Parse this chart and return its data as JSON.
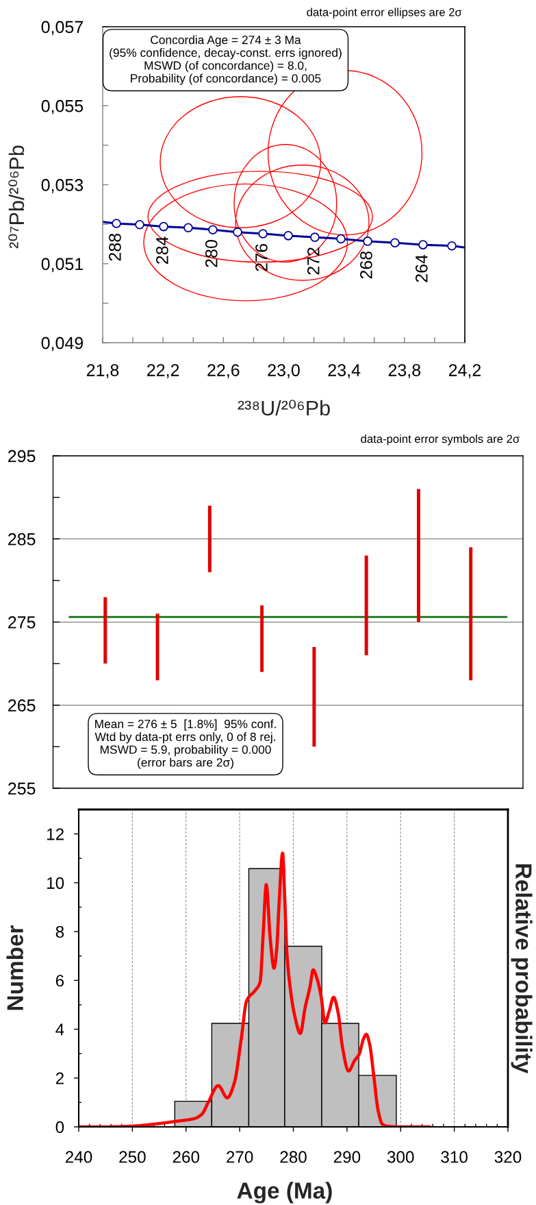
{
  "chart_data": [
    {
      "type": "line",
      "xlabel": "²³⁸U/²⁰⁶Pb",
      "ylabel": "²⁰⁷Pb/²⁰⁶Pb",
      "xlim": [
        21.8,
        24.2
      ],
      "ylim": [
        0.049,
        0.057
      ],
      "xticks": [
        {
          "value": 21.8,
          "label": "21,8"
        },
        {
          "value": 22.0,
          "label": null
        },
        {
          "value": 22.2,
          "label": "22,2"
        },
        {
          "value": 22.4,
          "label": null
        },
        {
          "value": 22.6,
          "label": "22,6"
        },
        {
          "value": 22.8,
          "label": null
        },
        {
          "value": 23.0,
          "label": "23,0"
        },
        {
          "value": 23.2,
          "label": null
        },
        {
          "value": 23.4,
          "label": "23,4"
        },
        {
          "value": 23.6,
          "label": null
        },
        {
          "value": 23.8,
          "label": "23,8"
        },
        {
          "value": 24.0,
          "label": null
        },
        {
          "value": 24.2,
          "label": "24,2"
        }
      ],
      "yticks": [
        {
          "value": 0.049,
          "label": "0,049"
        },
        {
          "value": 0.05,
          "label": null
        },
        {
          "value": 0.051,
          "label": "0,051"
        },
        {
          "value": 0.052,
          "label": null
        },
        {
          "value": 0.053,
          "label": "0,053"
        },
        {
          "value": 0.054,
          "label": null
        },
        {
          "value": 0.055,
          "label": "0,055"
        },
        {
          "value": 0.056,
          "label": null
        },
        {
          "value": 0.057,
          "label": "0,057"
        }
      ],
      "series": [
        {
          "type": "line",
          "marker": "none",
          "color": "#000099",
          "x": [
            21.8,
            21.891,
            22.045,
            22.204,
            22.367,
            22.53,
            22.694,
            22.862,
            23.03,
            23.206,
            23.379,
            23.556,
            23.737,
            23.923,
            24.114,
            24.2
          ],
          "values": [
            0.05206,
            0.05202,
            0.05199,
            0.05194,
            0.05191,
            0.05186,
            0.0518,
            0.05176,
            0.05171,
            0.05167,
            0.05163,
            0.05157,
            0.05153,
            0.05148,
            0.05145,
            0.05141
          ]
        },
        {
          "type": "scatter",
          "marker": "circle",
          "color": "#000099",
          "x": [
            21.891,
            22.045,
            22.204,
            22.367,
            22.53,
            22.694,
            22.862,
            23.03,
            23.206,
            23.379,
            23.556,
            23.737,
            23.923,
            24.114
          ],
          "values": [
            0.05202,
            0.05199,
            0.05194,
            0.05191,
            0.05186,
            0.0518,
            0.05176,
            0.05171,
            0.05167,
            0.05163,
            0.05157,
            0.05153,
            0.05148,
            0.05145
          ]
        }
      ],
      "annotations": [
        "data-point error ellipses are 2σ",
        "Concordia Age = 274 ± 3 Ma\n(95% confidence, decay-const. errs ignored)\nMSWD (of concordance) = 8.0,\nProbability (of concordance) = 0.005",
        {
          "text": "288",
          "x": 21.891,
          "y": 0.05202
        },
        {
          "text": "284",
          "x": 22.204,
          "y": 0.05194
        },
        {
          "text": "280",
          "x": 22.53,
          "y": 0.05186
        },
        {
          "text": "276",
          "x": 22.862,
          "y": 0.05176
        },
        {
          "text": "272",
          "x": 23.206,
          "y": 0.05167
        },
        {
          "text": "268",
          "x": 23.556,
          "y": 0.05157
        },
        {
          "text": "264",
          "x": 23.923,
          "y": 0.05148
        }
      ]
    },
    {
      "type": "bar",
      "categories": [
        null,
        null,
        null,
        null,
        null,
        null,
        null,
        null
      ],
      "base": [
        270,
        268,
        281,
        269,
        260,
        271,
        275,
        268
      ],
      "values": [
        8,
        8,
        8,
        8,
        12,
        12,
        16,
        16
      ],
      "color": "#e00000",
      "ylim": [
        255,
        295
      ],
      "yticks": [
        255,
        {
          "value": 260,
          "label": null
        },
        265,
        {
          "value": 270,
          "label": null
        },
        275,
        {
          "value": 280,
          "label": null
        },
        285,
        {
          "value": 290,
          "label": null
        },
        295
      ],
      "grid": "y",
      "tick_labels": "y",
      "ref_lines": [
        {
          "axis": "y",
          "value": 275.6,
          "color": "#107010"
        }
      ],
      "annotations": [
        "data-point error symbols are 2σ",
        "Mean = 276 ± 5  [1.8%]  95% conf.\nWtd by data-pt errs only, 0 of 8 rej.\nMSWD = 5.9, probability = 0.000\n(error bars are 2σ)"
      ]
    },
    {
      "type": "histogram",
      "xlabel": "Age (Ma)",
      "ylabel": "Number",
      "y2label": "Relative probability",
      "bins": [
        257.9,
        264.8,
        271.7,
        278.4,
        285.3,
        292.2,
        299.2
      ],
      "series": [
        {
          "type": "histogram",
          "color": "#bfbfbf",
          "values": [
            1.05,
            4.24,
            10.58,
            7.4,
            4.24,
            2.11
          ]
        },
        {
          "type": "line",
          "color": "#ff0000",
          "x": [
            240,
            245,
            250,
            254,
            257.9,
            261.7,
            263.0,
            264.2,
            266.0,
            267.7,
            269.0,
            270.3,
            271.3,
            272.9,
            273.8,
            274.4,
            274.95,
            275.7,
            276.4,
            276.9,
            277.3,
            278.0,
            278.4,
            278.8,
            279.4,
            280.2,
            281.3,
            282.2,
            283.1,
            283.7,
            284.5,
            285.2,
            285.9,
            286.7,
            287.5,
            288.4,
            289.1,
            290.3,
            291.4,
            292.3,
            293.1,
            293.6,
            294.2,
            295.0,
            295.8,
            296.6,
            297.4,
            299.4,
            305.4
          ],
          "values": [
            0,
            0,
            0.03,
            0.11,
            0.22,
            0.35,
            0.53,
            1.03,
            1.69,
            1.19,
            1.8,
            3.62,
            5.17,
            5.59,
            5.93,
            7.98,
            9.92,
            7.7,
            6.5,
            7.28,
            8.96,
            11.21,
            9.38,
            7.13,
            5.73,
            4.61,
            3.83,
            4.89,
            5.73,
            6.43,
            6.01,
            5.31,
            4.26,
            4.75,
            5.31,
            4.61,
            3.34,
            2.29,
            2.71,
            2.99,
            3.62,
            3.79,
            3.41,
            2.08,
            0.67,
            0.11,
            0.03,
            0,
            0
          ]
        }
      ],
      "xlim": [
        240,
        320
      ],
      "ylim": [
        0,
        13
      ],
      "xticks": [
        240,
        {
          "value": 242,
          "label": null
        },
        {
          "value": 244,
          "label": null
        },
        {
          "value": 246,
          "label": null
        },
        {
          "value": 248,
          "label": null
        },
        250,
        {
          "value": 252,
          "label": null
        },
        {
          "value": 254,
          "label": null
        },
        {
          "value": 256,
          "label": null
        },
        {
          "value": 258,
          "label": null
        },
        260,
        {
          "value": 262,
          "label": null
        },
        {
          "value": 264,
          "label": null
        },
        {
          "value": 266,
          "label": null
        },
        {
          "value": 268,
          "label": null
        },
        270,
        {
          "value": 272,
          "label": null
        },
        {
          "value": 274,
          "label": null
        },
        {
          "value": 276,
          "label": null
        },
        {
          "value": 278,
          "label": null
        },
        280,
        {
          "value": 282,
          "label": null
        },
        {
          "value": 284,
          "label": null
        },
        {
          "value": 286,
          "label": null
        },
        {
          "value": 288,
          "label": null
        },
        290,
        {
          "value": 292,
          "label": null
        },
        {
          "value": 294,
          "label": null
        },
        {
          "value": 296,
          "label": null
        },
        {
          "value": 298,
          "label": null
        },
        300,
        {
          "value": 302,
          "label": null
        },
        {
          "value": 304,
          "label": null
        },
        {
          "value": 306,
          "label": null
        },
        {
          "value": 308,
          "label": null
        },
        310,
        {
          "value": 312,
          "label": null
        },
        {
          "value": 314,
          "label": null
        },
        {
          "value": 316,
          "label": null
        },
        {
          "value": 318,
          "label": null
        },
        320
      ],
      "yticks": [
        0,
        {
          "value": 1,
          "label": null
        },
        2,
        {
          "value": 3,
          "label": null
        },
        4,
        {
          "value": 5,
          "label": null
        },
        6,
        {
          "value": 7,
          "label": null
        },
        8,
        {
          "value": 9,
          "label": null
        },
        10,
        {
          "value": 11,
          "label": null
        },
        12
      ],
      "grid": "x"
    }
  ]
}
